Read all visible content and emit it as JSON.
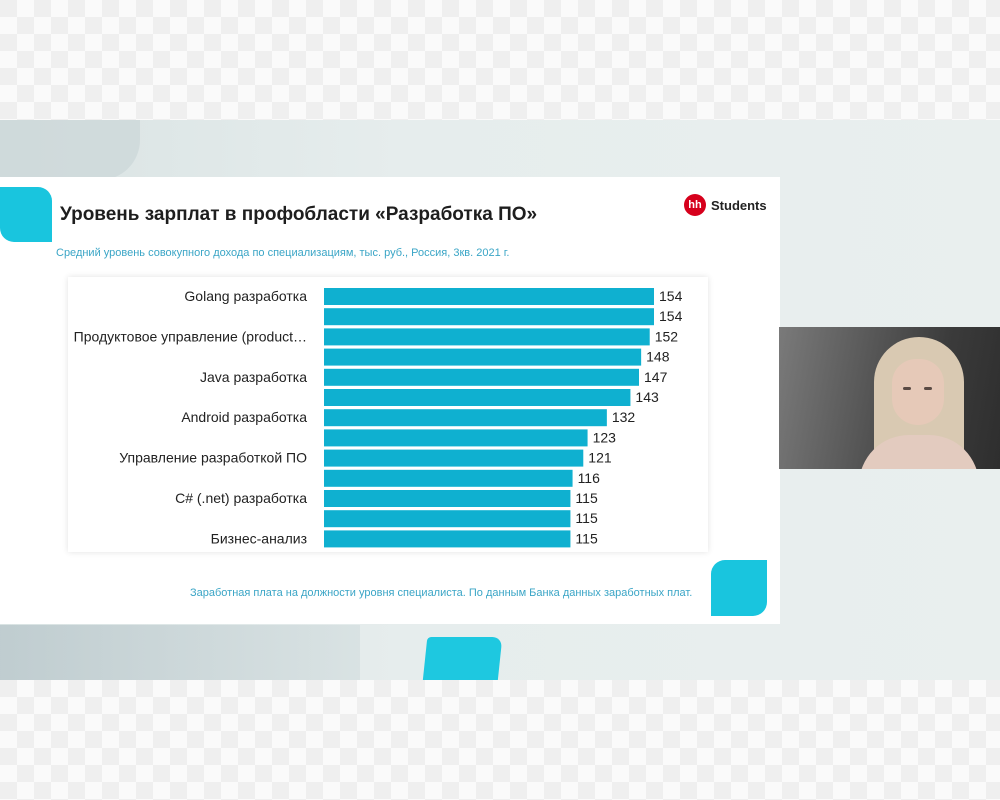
{
  "slide": {
    "title": "Уровень зарплат в профобласти «Разработка ПО»",
    "subtitle": "Средний уровень совокупного дохода по специализациям, тыс. руб., Россия, 3кв. 2021 г.",
    "footnote": "Заработная плата на должности уровня специалиста. По данным Банка данных заработных плат.",
    "logo_badge": "hh",
    "logo_text": "Students"
  },
  "colors": {
    "bar": "#0fb0d0",
    "accent": "#19c5de",
    "logo_red": "#d6001c"
  },
  "chart_data": {
    "type": "bar",
    "orientation": "horizontal",
    "title": "Уровень зарплат в профобласти «Разработка ПО»",
    "categories": [
      "Golang разработка",
      "",
      "Продуктовое управление (product…",
      "",
      "Java разработка",
      "",
      "Android разработка",
      "",
      "Управление разработкой ПО",
      "",
      "C# (.net) разработка",
      "",
      "Бизнес-анализ"
    ],
    "values": [
      154,
      154,
      152,
      148,
      147,
      143,
      132,
      123,
      121,
      116,
      115,
      115,
      115
    ],
    "xlim": [
      0,
      154
    ],
    "grid": false,
    "legend": "none"
  }
}
